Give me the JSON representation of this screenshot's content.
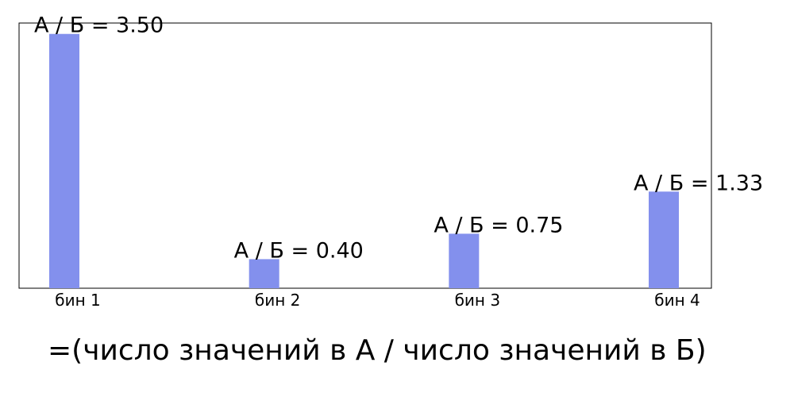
{
  "chart_data": {
    "type": "bar",
    "categories": [
      "бин 1",
      "бин 2",
      "бин 3",
      "бин 4"
    ],
    "values": [
      3.5,
      0.4,
      0.75,
      1.33
    ],
    "bar_labels": [
      "А / Б = 3.50",
      "А / Б = 0.40",
      "А / Б = 0.75",
      "А / Б = 1.33"
    ],
    "ylim": [
      0,
      3.65
    ],
    "grid": false,
    "y_ticks_visible": false,
    "colors": {
      "bar": "#8390ed",
      "frame": "#000000",
      "text": "#000000"
    }
  },
  "caption": "=(число значений в А / число значений в Б)"
}
